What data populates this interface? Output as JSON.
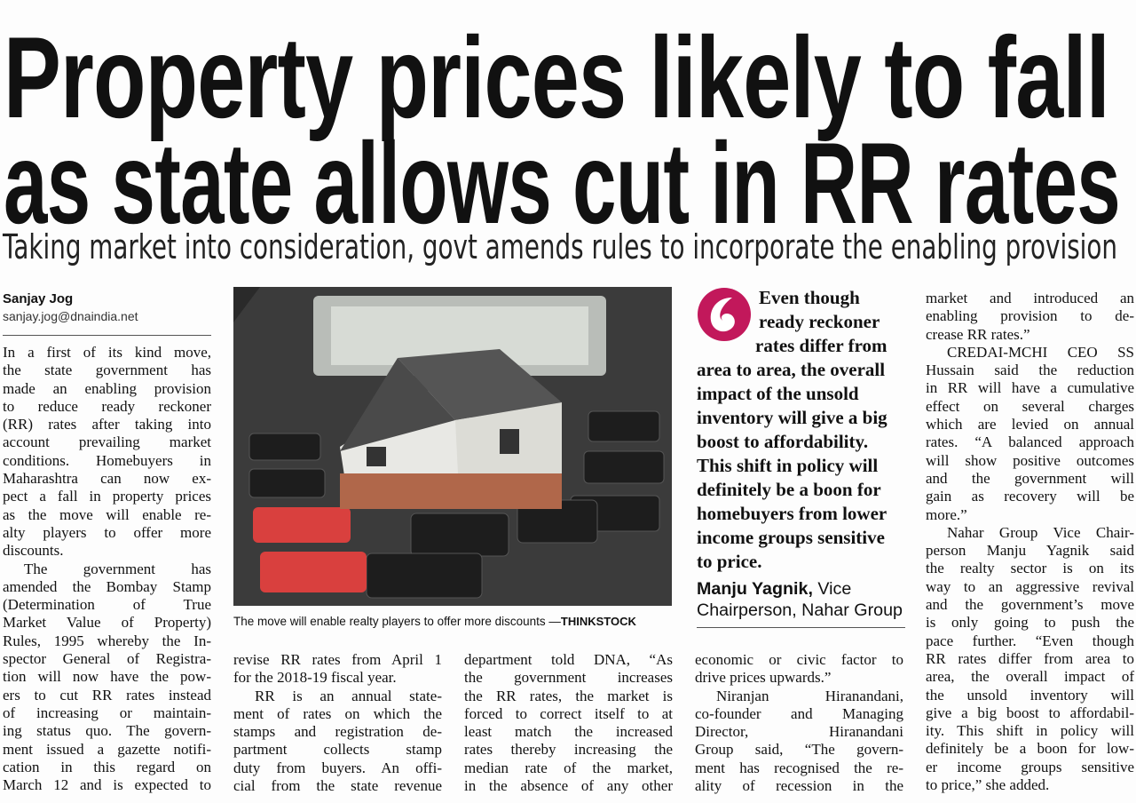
{
  "headline": {
    "lines": [
      "Property prices likely to fall",
      "as state allows cut in RR rates"
    ]
  },
  "subheadline": "Taking market into consideration, govt amends rules to incorporate the enabling provision",
  "byline": {
    "name": "Sanjay Jog",
    "email": "sanjay.jog@dnaindia.net"
  },
  "photo": {
    "caption": "The move will enable realty players to offer more discounts —",
    "credit": "THINKSTOCK"
  },
  "columns": [
    {
      "paragraphs": [
        [
          "In a first of its kind move,",
          "the state government has",
          "made an enabling provision",
          "to reduce ready reckoner",
          "(RR) rates after taking into",
          "account prevailing market",
          "conditions. Homebuyers in",
          "Maharashtra can now ex-",
          "pect a fall in property prices",
          "as the move will enable re-",
          "alty players to offer more",
          "discounts."
        ],
        [
          "The government has",
          "amended the Bombay Stamp",
          "(Determination of True",
          "Market Value of Property)",
          "Rules, 1995 whereby the In-",
          "spector General of Registra-",
          "tion will now have the pow-",
          "ers to cut RR rates instead",
          "of increasing or maintain-",
          "ing status quo. The govern-",
          "ment issued a gazette notifi-",
          "cation in this regard on",
          "March 12 and is expected to"
        ]
      ]
    },
    {
      "paragraphs": [
        [
          "revise RR rates from April 1",
          "for the 2018-19 fiscal year."
        ],
        [
          "RR is an annual state-",
          "ment of rates on which the",
          "stamps and registration de-",
          "partment collects stamp",
          "duty from buyers. An offi-",
          "cial from the state revenue"
        ]
      ]
    },
    {
      "paragraphs": [
        [
          "department told DNA, “As",
          "the government increases",
          "the RR rates, the market is",
          "forced to correct itself to at",
          "least match the increased",
          "rates thereby increasing the",
          "median rate of the market,",
          "in the absence of any other"
        ]
      ]
    },
    {
      "paragraphs": [
        [
          "economic or civic factor to",
          "drive prices upwards.”"
        ],
        [
          "Niranjan Hiranandani,",
          "co-founder and Managing",
          "Director, Hiranandani",
          "Group said, “The govern-",
          "ment has recognised the re-",
          "ality of recession in the"
        ]
      ]
    },
    {
      "paragraphs": [
        [
          "market and introduced an",
          "enabling provision to de-",
          "crease RR rates.”"
        ],
        [
          "CREDAI-MCHI CEO SS",
          "Hussain said the reduction",
          "in RR will have a cumulative",
          "effect on several charges",
          "which are levied on annual",
          "rates. “A balanced approach",
          "will show positive outcomes",
          "and the government will",
          "gain as recovery will be",
          "more.”"
        ],
        [
          "Nahar Group Vice Chair-",
          "person Manju Yagnik said",
          "the realty sector is on its",
          "way to an aggressive revival",
          "and the government’s move",
          "is only going to push the",
          "pace further. “Even though",
          "RR rates differ from area to",
          "area, the overall impact of",
          "the unsold inventory will",
          "give a big boost to affordabil-",
          "ity. This shift in policy will",
          "definitely be a boon for low-",
          "er income groups sensitive",
          "to price,” she added."
        ]
      ]
    }
  ],
  "pull_quote": {
    "lines": [
      "Even though",
      "ready reckoner",
      "rates differ from",
      "area to area, the overall",
      "impact of the unsold",
      "inventory will give a big",
      "boost to affordability.",
      "This shift in policy will",
      "definitely be a boon for",
      "homebuyers from lower",
      "income groups sensitive",
      "to price."
    ],
    "name": "Manju Yagnik,",
    "role_lines": [
      "Vice",
      "Chairperson, Nahar Group"
    ]
  }
}
